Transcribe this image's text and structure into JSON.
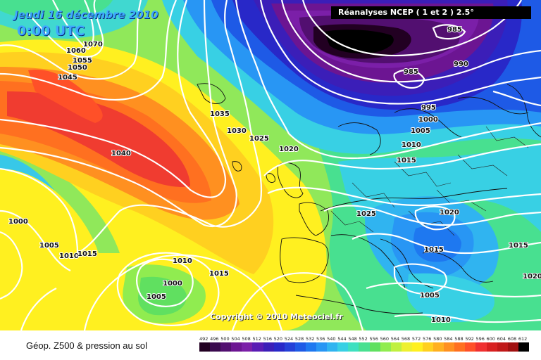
{
  "header": {
    "date": "Jeudi 16 décembre 2010",
    "time": "0:00 UTC",
    "source": "Réanalyses NCEP ( 1 et 2 ) 2.5°"
  },
  "copyright": "Copyright © 2010 Meteociel.fr",
  "footer": {
    "title": "Géop. Z500 & pression au sol"
  },
  "legend": {
    "values": [
      "492",
      "496",
      "500",
      "504",
      "508",
      "512",
      "516",
      "520",
      "524",
      "528",
      "532",
      "536",
      "540",
      "544",
      "548",
      "552",
      "556",
      "560",
      "564",
      "568",
      "572",
      "576",
      "580",
      "584",
      "588",
      "592",
      "596",
      "600",
      "604",
      "608",
      "612"
    ],
    "colors": [
      "#220022",
      "#3a0a4e",
      "#520f70",
      "#6c1592",
      "#7b1fa8",
      "#5a1cb4",
      "#3b1eb8",
      "#2828c8",
      "#2440d8",
      "#1e5ae6",
      "#1e78f0",
      "#2896f4",
      "#30b4f0",
      "#38d0e4",
      "#3ee0c0",
      "#48e090",
      "#60e060",
      "#90ec50",
      "#c0f040",
      "#eef030",
      "#fff020",
      "#ffd020",
      "#ffb020",
      "#ff9020",
      "#ff7020",
      "#ff5028",
      "#f03030",
      "#d82020",
      "#c01818",
      "#a01010",
      "#000000"
    ]
  },
  "isobars": [
    {
      "label": "1070"
    },
    {
      "label": "1060"
    },
    {
      "label": "1055"
    },
    {
      "label": "1050"
    },
    {
      "label": "1045"
    },
    {
      "label": "1040"
    },
    {
      "label": "1035"
    },
    {
      "label": "1030"
    },
    {
      "label": "1025"
    },
    {
      "label": "1020"
    },
    {
      "label": "1015"
    },
    {
      "label": "1010"
    },
    {
      "label": "1005"
    },
    {
      "label": "1000"
    },
    {
      "label": "995"
    },
    {
      "label": "990"
    },
    {
      "label": "985"
    },
    {
      "label": "985"
    },
    {
      "label": "1025"
    },
    {
      "label": "1020"
    },
    {
      "label": "1015"
    },
    {
      "label": "1015"
    },
    {
      "label": "1020"
    },
    {
      "label": "1005"
    },
    {
      "label": "1010"
    },
    {
      "label": "1000"
    },
    {
      "label": "1005"
    },
    {
      "label": "1010"
    },
    {
      "label": "1015"
    },
    {
      "label": "1010"
    },
    {
      "label": "1015"
    },
    {
      "label": "1000"
    },
    {
      "label": "1005"
    }
  ]
}
